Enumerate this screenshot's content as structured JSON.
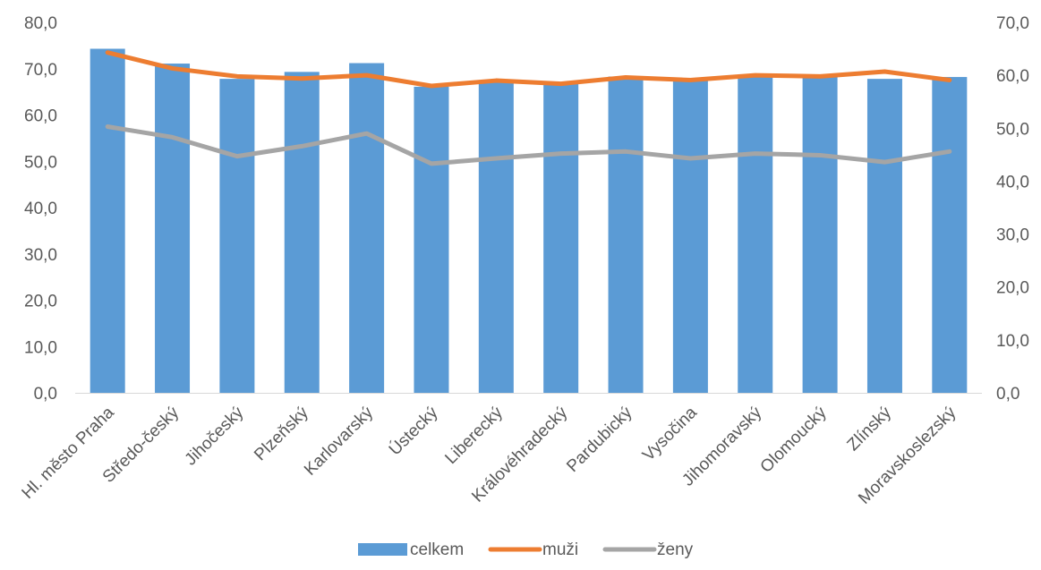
{
  "chart_data": {
    "type": "bar",
    "title": "",
    "xlabel": "",
    "ylabel": "",
    "categories": [
      "Hl. město Praha",
      "Středo-český",
      "Jihočeský",
      "Plzeňský",
      "Karlovarský",
      "Ústecký",
      "Liberecký",
      "Královéhradecký",
      "Pardubický",
      "Vysočina",
      "Jihomoravský",
      "Olomoucký",
      "Zlínský",
      "Moravskoslezský"
    ],
    "y_left": {
      "ylim": [
        0,
        80
      ],
      "ticks": [
        "0,0",
        "10,0",
        "20,0",
        "30,0",
        "40,0",
        "50,0",
        "60,0",
        "70,0",
        "80,0"
      ]
    },
    "y_right": {
      "ylim": [
        0,
        70
      ],
      "ticks": [
        "0,0",
        "10,0",
        "20,0",
        "30,0",
        "40,0",
        "50,0",
        "60,0",
        "70,0"
      ]
    },
    "series": [
      {
        "name": "celkem",
        "type": "bar",
        "axis": "left",
        "color": "#5B9BD5",
        "values": [
          74.3,
          71.1,
          67.8,
          69.3,
          71.2,
          66.1,
          67.1,
          67.1,
          68.3,
          67.8,
          68.4,
          68.3,
          67.8,
          68.2
        ]
      },
      {
        "name": "muži",
        "type": "line",
        "axis": "right",
        "color": "#ED7D31",
        "values": [
          64.3,
          61.3,
          59.8,
          59.4,
          60.0,
          58.0,
          59.0,
          58.4,
          59.6,
          59.1,
          60.0,
          59.8,
          60.7,
          59.1
        ]
      },
      {
        "name": "ženy",
        "type": "line",
        "axis": "right",
        "color": "#A5A5A5",
        "values": [
          50.3,
          48.3,
          44.7,
          46.6,
          49.0,
          43.3,
          44.3,
          45.2,
          45.6,
          44.3,
          45.2,
          44.9,
          43.6,
          45.6
        ]
      }
    ],
    "legend": {
      "position": "bottom"
    },
    "grid": false
  }
}
